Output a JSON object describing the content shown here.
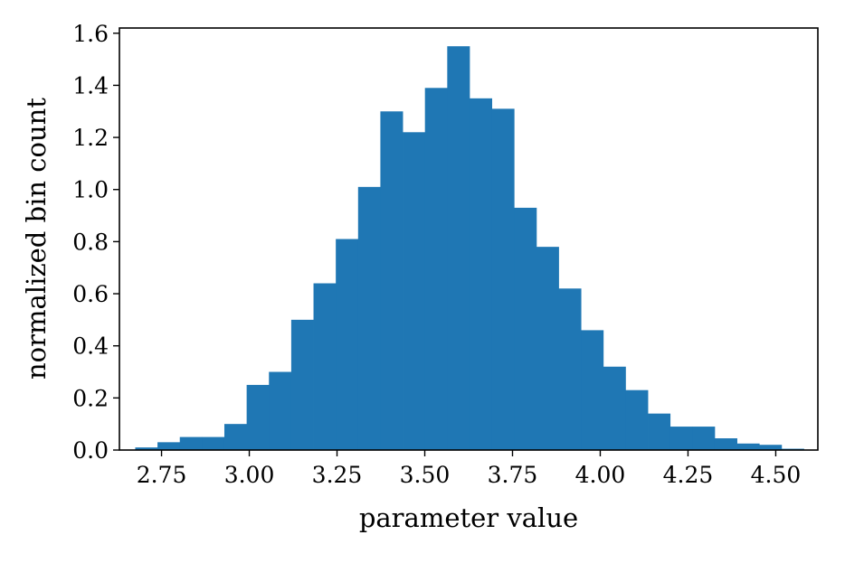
{
  "chart_data": {
    "type": "bar",
    "xlabel": "parameter value",
    "ylabel": "normalized bin count",
    "xlim": [
      2.63,
      4.62
    ],
    "ylim": [
      0.0,
      1.62
    ],
    "x_ticks": [
      2.75,
      3.0,
      3.25,
      3.5,
      3.75,
      4.0,
      4.25,
      4.5
    ],
    "x_tick_labels": [
      "2.75",
      "3.00",
      "3.25",
      "3.50",
      "3.75",
      "4.00",
      "4.25",
      "4.50"
    ],
    "y_ticks": [
      0.0,
      0.2,
      0.4,
      0.6,
      0.8,
      1.0,
      1.2,
      1.4,
      1.6
    ],
    "y_tick_labels": [
      "0.0",
      "0.2",
      "0.4",
      "0.6",
      "0.8",
      "1.0",
      "1.2",
      "1.4",
      "1.6"
    ],
    "grid": false,
    "bar_color": "#1f77b4",
    "bin_start": 2.675,
    "bin_width": 0.0635,
    "values": [
      0.01,
      0.03,
      0.05,
      0.05,
      0.1,
      0.25,
      0.3,
      0.5,
      0.64,
      0.81,
      1.01,
      1.3,
      1.22,
      1.39,
      1.55,
      1.35,
      1.31,
      0.93,
      0.78,
      0.62,
      0.46,
      0.32,
      0.23,
      0.14,
      0.09,
      0.09,
      0.045,
      0.025,
      0.02,
      0.005
    ]
  }
}
